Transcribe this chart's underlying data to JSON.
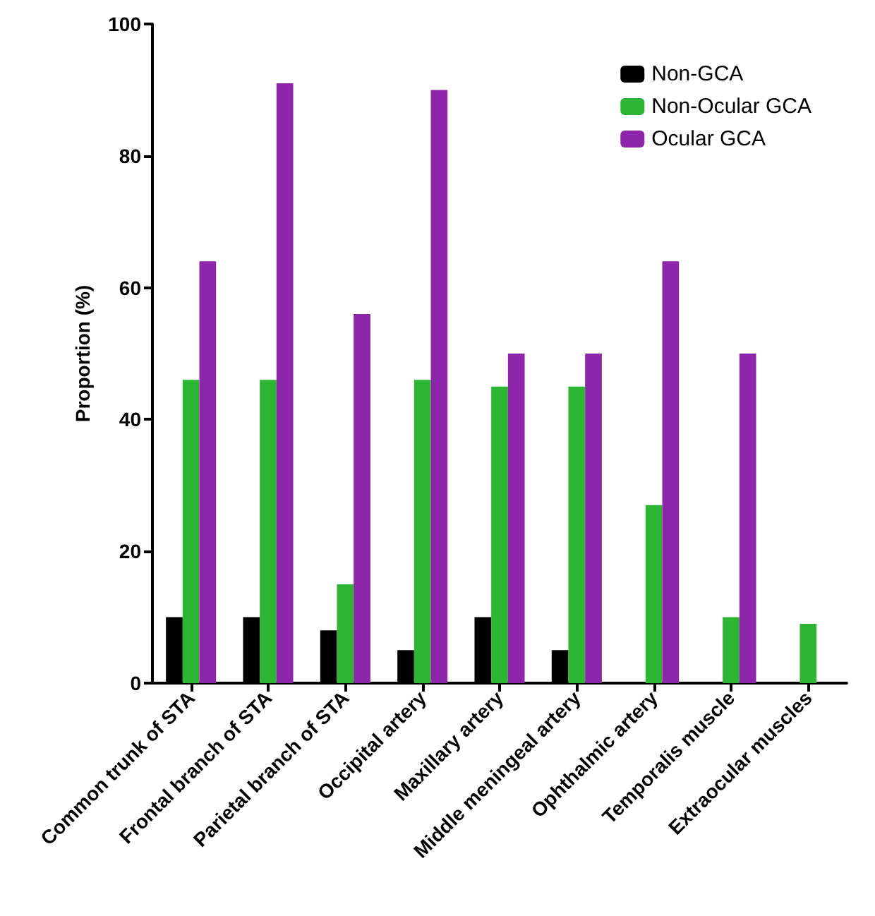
{
  "chart_data": {
    "type": "bar",
    "ylabel": "Proportion (%)",
    "categories": [
      "Common trunk of STA",
      "Frontal branch of STA",
      "Parietal branch of STA",
      "Occipital artery",
      "Maxillary artery",
      "Middle meningeal artery",
      "Ophthalmic artery",
      "Temporalis muscle",
      "Extraocular muscles"
    ],
    "series": [
      {
        "name": "Non-GCA",
        "color": "#000000",
        "values": [
          10,
          10,
          8,
          5,
          10,
          5,
          0,
          0,
          0
        ]
      },
      {
        "name": "Non-Ocular GCA",
        "color": "#2db534",
        "values": [
          46,
          46,
          15,
          46,
          45,
          45,
          27,
          10,
          9
        ]
      },
      {
        "name": "Ocular GCA",
        "color": "#8e26ab",
        "values": [
          64,
          91,
          56,
          90,
          50,
          50,
          64,
          50,
          0
        ]
      }
    ],
    "ylim": [
      0,
      100
    ],
    "yticks": [
      0,
      20,
      40,
      60,
      80,
      100
    ],
    "grid": false,
    "legend": "top right"
  }
}
